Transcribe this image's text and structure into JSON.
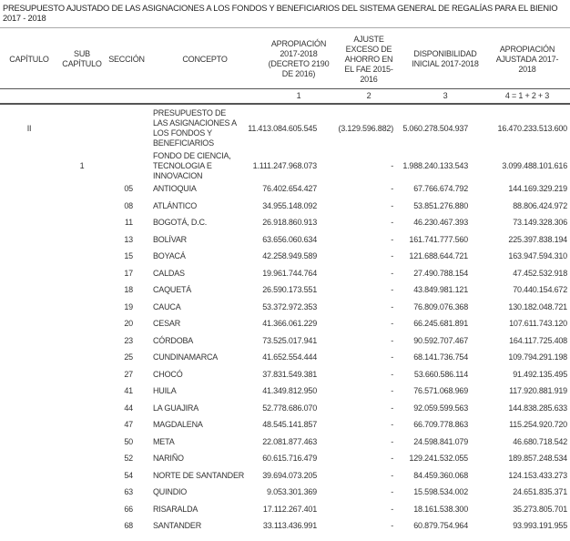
{
  "title": "PRESUPUESTO AJUSTADO DE LAS ASIGNACIONES A LOS FONDOS Y BENEFICIARIOS DEL SISTEMA GENERAL DE REGALÍAS PARA EL BIENIO 2017 - 2018",
  "headers": {
    "capitulo": "CAPÍTULO",
    "sub_capitulo": "SUB CAPÍTULO",
    "seccion": "SECCIÓN",
    "concepto": "CONCEPTO",
    "col1": "APROPIACIÓN 2017-2018 (DECRETO 2190 DE 2016)",
    "col2": "AJUSTE EXCESO DE AHORRO EN EL FAE 2015-2016",
    "col3": "DISPONIBILIDAD INICIAL 2017-2018",
    "col4": "APROPIACIÓN AJUSTADA 2017-2018"
  },
  "column_numbers": [
    "1",
    "2",
    "3",
    "4 = 1 + 2 + 3"
  ],
  "summary_rows": [
    {
      "capitulo": "II",
      "sub": "",
      "concepto": "PRESUPUESTO DE LAS ASIGNACIONES A LOS FONDOS Y BENEFICIARIOS",
      "c1": "11.413.084.605.545",
      "c2": "(3.129.596.882)",
      "c3": "5.060.278.504.937",
      "c4": "16.470.233.513.600"
    },
    {
      "capitulo": "",
      "sub": "1",
      "concepto": "FONDO DE CIENCIA, TECNOLOGIA E INNOVACION",
      "c1": "1.111.247.968.073",
      "c2": "-",
      "c3": "1.988.240.133.543",
      "c4": "3.099.488.101.616"
    }
  ],
  "rows": [
    {
      "sec": "05",
      "concepto": "ANTIOQUIA",
      "c1": "76.402.654.427",
      "c2": "-",
      "c3": "67.766.674.792",
      "c4": "144.169.329.219"
    },
    {
      "sec": "08",
      "concepto": "ATLÁNTICO",
      "c1": "34.955.148.092",
      "c2": "-",
      "c3": "53.851.276.880",
      "c4": "88.806.424.972"
    },
    {
      "sec": "11",
      "concepto": "BOGOTÁ, D.C.",
      "c1": "26.918.860.913",
      "c2": "-",
      "c3": "46.230.467.393",
      "c4": "73.149.328.306"
    },
    {
      "sec": "13",
      "concepto": "BOLÍVAR",
      "c1": "63.656.060.634",
      "c2": "-",
      "c3": "161.741.777.560",
      "c4": "225.397.838.194"
    },
    {
      "sec": "15",
      "concepto": "BOYACÁ",
      "c1": "42.258.949.589",
      "c2": "-",
      "c3": "121.688.644.721",
      "c4": "163.947.594.310"
    },
    {
      "sec": "17",
      "concepto": "CALDAS",
      "c1": "19.961.744.764",
      "c2": "-",
      "c3": "27.490.788.154",
      "c4": "47.452.532.918"
    },
    {
      "sec": "18",
      "concepto": "CAQUETÁ",
      "c1": "26.590.173.551",
      "c2": "-",
      "c3": "43.849.981.121",
      "c4": "70.440.154.672"
    },
    {
      "sec": "19",
      "concepto": "CAUCA",
      "c1": "53.372.972.353",
      "c2": "-",
      "c3": "76.809.076.368",
      "c4": "130.182.048.721"
    },
    {
      "sec": "20",
      "concepto": "CESAR",
      "c1": "41.366.061.229",
      "c2": "-",
      "c3": "66.245.681.891",
      "c4": "107.611.743.120"
    },
    {
      "sec": "23",
      "concepto": "CÓRDOBA",
      "c1": "73.525.017.941",
      "c2": "-",
      "c3": "90.592.707.467",
      "c4": "164.117.725.408"
    },
    {
      "sec": "25",
      "concepto": "CUNDINAMARCA",
      "c1": "41.652.554.444",
      "c2": "-",
      "c3": "68.141.736.754",
      "c4": "109.794.291.198"
    },
    {
      "sec": "27",
      "concepto": "CHOCÓ",
      "c1": "37.831.549.381",
      "c2": "-",
      "c3": "53.660.586.114",
      "c4": "91.492.135.495"
    },
    {
      "sec": "41",
      "concepto": "HUILA",
      "c1": "41.349.812.950",
      "c2": "-",
      "c3": "76.571.068.969",
      "c4": "117.920.881.919"
    },
    {
      "sec": "44",
      "concepto": "LA GUAJIRA",
      "c1": "52.778.686.070",
      "c2": "-",
      "c3": "92.059.599.563",
      "c4": "144.838.285.633"
    },
    {
      "sec": "47",
      "concepto": "MAGDALENA",
      "c1": "48.545.141.857",
      "c2": "-",
      "c3": "66.709.778.863",
      "c4": "115.254.920.720"
    },
    {
      "sec": "50",
      "concepto": "META",
      "c1": "22.081.877.463",
      "c2": "-",
      "c3": "24.598.841.079",
      "c4": "46.680.718.542"
    },
    {
      "sec": "52",
      "concepto": "NARIÑO",
      "c1": "60.615.716.479",
      "c2": "-",
      "c3": "129.241.532.055",
      "c4": "189.857.248.534"
    },
    {
      "sec": "54",
      "concepto": "NORTE DE SANTANDER",
      "c1": "39.694.073.205",
      "c2": "-",
      "c3": "84.459.360.068",
      "c4": "124.153.433.273"
    },
    {
      "sec": "63",
      "concepto": "QUINDIO",
      "c1": "9.053.301.369",
      "c2": "-",
      "c3": "15.598.534.002",
      "c4": "24.651.835.371"
    },
    {
      "sec": "66",
      "concepto": "RISARALDA",
      "c1": "17.112.267.401",
      "c2": "-",
      "c3": "18.161.538.300",
      "c4": "35.273.805.701"
    },
    {
      "sec": "68",
      "concepto": "SANTANDER",
      "c1": "33.113.436.991",
      "c2": "-",
      "c3": "60.879.754.964",
      "c4": "93.993.191.955"
    }
  ]
}
